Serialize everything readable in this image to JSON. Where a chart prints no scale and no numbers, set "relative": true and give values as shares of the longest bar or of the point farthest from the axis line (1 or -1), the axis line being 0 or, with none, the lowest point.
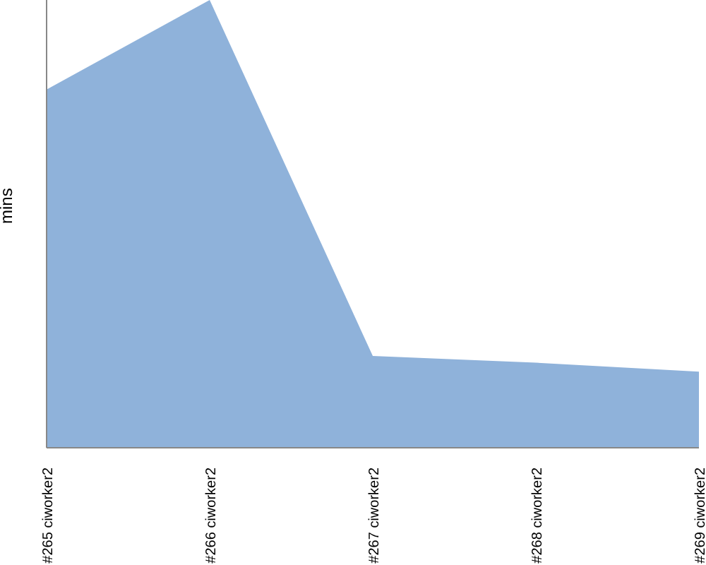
{
  "chart_data": {
    "type": "area",
    "relative": true,
    "ylabel": "mins",
    "categories": [
      "#265 ciworker2",
      "#266 ciworker2",
      "#267 ciworker2",
      "#268 ciworker2",
      "#269 ciworker2"
    ],
    "series": [
      {
        "color": "#8fb2da",
        "values": [
          0.8,
          1,
          0.205,
          0.19,
          0.17
        ]
      }
    ]
  }
}
